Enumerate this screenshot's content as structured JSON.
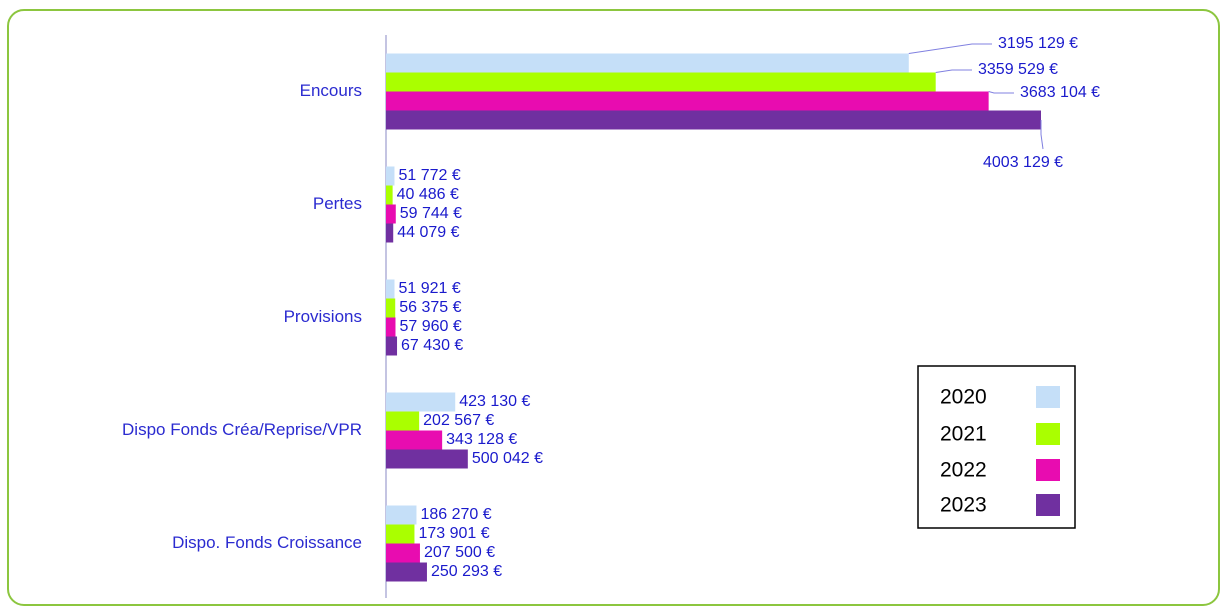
{
  "chart_data": {
    "type": "bar",
    "orientation": "horizontal",
    "categories": [
      "Encours",
      "Pertes",
      "Provisions",
      "Dispo Fonds Créa/Reprise/VPR",
      "Dispo. Fonds Croissance"
    ],
    "series": [
      {
        "name": "2020",
        "color": "#c5dff8",
        "values": [
          3195129,
          51772,
          51921,
          423130,
          186270
        ],
        "value_labels": [
          "3195 129 €",
          "51 772 €",
          "51 921 €",
          "423 130 €",
          "186 270 €"
        ]
      },
      {
        "name": "2021",
        "color": "#aaff00",
        "values": [
          3359529,
          40486,
          56375,
          202567,
          173901
        ],
        "value_labels": [
          "3359 529 €",
          "40 486 €",
          "56 375 €",
          "202 567 €",
          "173 901 €"
        ]
      },
      {
        "name": "2022",
        "color": "#e80cb0",
        "values": [
          3683104,
          59744,
          57960,
          343128,
          207500
        ],
        "value_labels": [
          "3683 104 €",
          "59 744 €",
          "57 960 €",
          "343 128 €",
          "207 500 €"
        ]
      },
      {
        "name": "2023",
        "color": "#7030a0",
        "values": [
          4003129,
          44079,
          67430,
          500042,
          250293
        ],
        "value_labels": [
          "4003 129 €",
          "44 079 €",
          "67 430 €",
          "500 042 €",
          "250 293 €"
        ]
      }
    ],
    "xlim": [
      0,
      4500000
    ],
    "legend": "right"
  }
}
